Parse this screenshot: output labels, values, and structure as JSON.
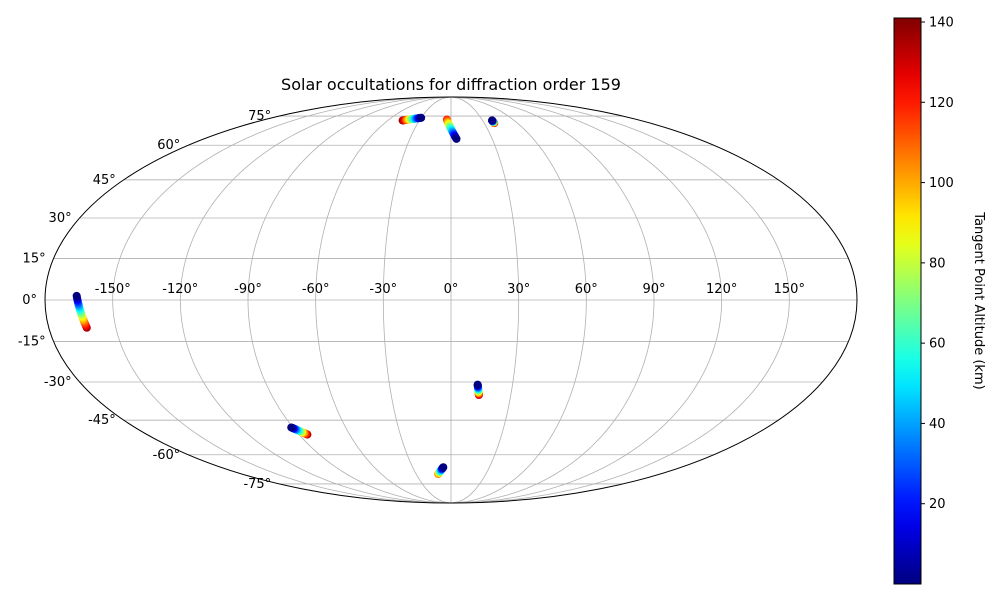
{
  "chart_data": {
    "type": "scatter",
    "projection": "mollweide",
    "title": "Solar occultations for diffraction order 159",
    "xlabel": "",
    "ylabel": "",
    "xlim": [
      -180,
      180
    ],
    "ylim": [
      -90,
      90
    ],
    "grid": true,
    "lon_ticks": [
      {
        "value": -150,
        "label": "-150°"
      },
      {
        "value": -120,
        "label": "-120°"
      },
      {
        "value": -90,
        "label": "-90°"
      },
      {
        "value": -60,
        "label": "-60°"
      },
      {
        "value": -30,
        "label": "-30°"
      },
      {
        "value": 0,
        "label": "0°"
      },
      {
        "value": 30,
        "label": "30°"
      },
      {
        "value": 60,
        "label": "60°"
      },
      {
        "value": 90,
        "label": "90°"
      },
      {
        "value": 120,
        "label": "120°"
      },
      {
        "value": 150,
        "label": "150°"
      }
    ],
    "lat_ticks": [
      {
        "value": 75,
        "label": "75°"
      },
      {
        "value": 60,
        "label": "60°"
      },
      {
        "value": 45,
        "label": "45°"
      },
      {
        "value": 30,
        "label": "30°"
      },
      {
        "value": 15,
        "label": "15°"
      },
      {
        "value": 0,
        "label": "0°"
      },
      {
        "value": -15,
        "label": "-15°"
      },
      {
        "value": -30,
        "label": "-30°"
      },
      {
        "value": -45,
        "label": "-45°"
      },
      {
        "value": -60,
        "label": "-60°"
      },
      {
        "value": -75,
        "label": "-75°"
      }
    ],
    "colorbar": {
      "label": "Tangent Point Altitude (km)",
      "colormap": "jet",
      "min": 0,
      "max": 141,
      "ticks": [
        {
          "value": 20,
          "label": "20"
        },
        {
          "value": 40,
          "label": "40"
        },
        {
          "value": 60,
          "label": "60"
        },
        {
          "value": 80,
          "label": "80"
        },
        {
          "value": 100,
          "label": "100"
        },
        {
          "value": 120,
          "label": "120"
        },
        {
          "value": 140,
          "label": "140"
        }
      ]
    },
    "occultations": [
      {
        "lon_start": -166,
        "lat_start": 1.5,
        "lon_end": -163,
        "lat_end": -10,
        "alt_start": 0,
        "alt_end": 135
      },
      {
        "lon_start": -30,
        "lat_start": 74,
        "lon_end": -46,
        "lat_end": 72.5,
        "alt_start": 0,
        "alt_end": 140
      },
      {
        "lon_start": 4,
        "lat_start": 63,
        "lon_end": -4,
        "lat_end": 73,
        "alt_start": 0,
        "alt_end": 120
      },
      {
        "lon_start": 39,
        "lat_start": 72.5,
        "lon_end": 39,
        "lat_end": 71,
        "alt_start": 0,
        "alt_end": 135
      },
      {
        "lon_start": 13,
        "lat_start": -31,
        "lon_end": 14,
        "lat_end": -35,
        "alt_start": 0,
        "alt_end": 135
      },
      {
        "lon_start": -91,
        "lat_start": -48,
        "lon_end": -85,
        "lat_end": -51,
        "alt_start": 0,
        "alt_end": 135
      },
      {
        "lon_start": -6,
        "lat_start": -66,
        "lon_end": -11,
        "lat_end": -69.5,
        "alt_start": 0,
        "alt_end": 110
      }
    ]
  }
}
